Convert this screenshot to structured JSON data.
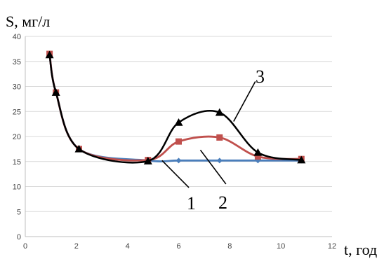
{
  "chart_data": {
    "type": "line",
    "ylabel": "S, мг/л",
    "xlabel": "t, год",
    "xlim": [
      0,
      12
    ],
    "ylim": [
      0,
      40
    ],
    "x_ticks": [
      0,
      2,
      4,
      6,
      8,
      10,
      12
    ],
    "y_ticks": [
      0,
      5,
      10,
      15,
      20,
      25,
      30,
      35,
      40
    ],
    "grid": "horizontal",
    "legend": "none",
    "series": [
      {
        "label": "1",
        "color": "#4a7ebb",
        "marker": "diamond",
        "points": [
          [
            0.95,
            36.5
          ],
          [
            1.2,
            28.8
          ],
          [
            2.1,
            17.5
          ],
          [
            4.8,
            15.2
          ],
          [
            6.0,
            15.2
          ],
          [
            7.6,
            15.2
          ],
          [
            9.1,
            15.2
          ],
          [
            10.8,
            15.2
          ]
        ]
      },
      {
        "label": "2",
        "color": "#c0504d",
        "marker": "square",
        "points": [
          [
            0.95,
            36.5
          ],
          [
            1.2,
            28.8
          ],
          [
            2.1,
            17.5
          ],
          [
            4.8,
            15.3
          ],
          [
            6.0,
            19.0
          ],
          [
            7.6,
            19.8
          ],
          [
            9.1,
            16.0
          ],
          [
            10.8,
            15.5
          ]
        ]
      },
      {
        "label": "3",
        "color": "#000000",
        "marker": "triangle",
        "points": [
          [
            0.95,
            36.3
          ],
          [
            1.2,
            28.8
          ],
          [
            2.1,
            17.5
          ],
          [
            4.8,
            15.1
          ],
          [
            6.0,
            22.8
          ],
          [
            7.6,
            24.8
          ],
          [
            9.1,
            16.8
          ],
          [
            10.8,
            15.3
          ]
        ]
      }
    ]
  }
}
